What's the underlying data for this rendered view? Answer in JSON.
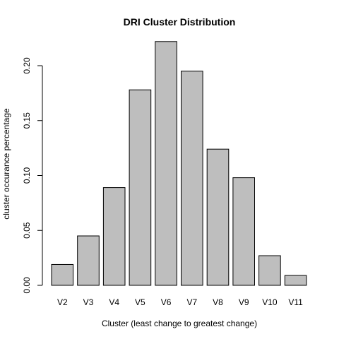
{
  "chart_data": {
    "type": "bar",
    "title": "DRI Cluster Distribution",
    "xlabel": "Cluster (least change to greatest change)",
    "ylabel": "cluster occurance percentage",
    "categories": [
      "V2",
      "V3",
      "V4",
      "V5",
      "V6",
      "V7",
      "V8",
      "V9",
      "V10",
      "V11"
    ],
    "values": [
      0.019,
      0.045,
      0.089,
      0.178,
      0.222,
      0.195,
      0.124,
      0.098,
      0.027,
      0.009
    ],
    "ylim": [
      0,
      0.22
    ],
    "yticks": [
      "0.00",
      "0.05",
      "0.10",
      "0.15",
      "0.20"
    ],
    "grid": false,
    "legend": "none",
    "bar_fill": "#bebebe",
    "bar_stroke": "#000000"
  }
}
